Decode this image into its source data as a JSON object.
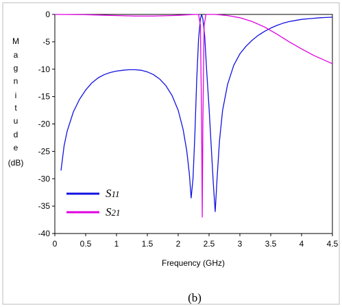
{
  "chart_data": {
    "type": "line",
    "caption": "(b)",
    "xlabel": "Frequency (GHz)",
    "ylabel_letters": [
      "M",
      "a",
      "g",
      "n",
      "i",
      "t",
      "u",
      "d",
      "e",
      "(dB)"
    ],
    "xlim": [
      0,
      4.5
    ],
    "ylim": [
      -40,
      0
    ],
    "x_ticks": [
      "0",
      "0.5",
      "1",
      "1.5",
      "2",
      "2.5",
      "3",
      "3.5",
      "4",
      "4.5"
    ],
    "y_ticks": [
      "0",
      "-5",
      "-10",
      "-15",
      "-20",
      "-25",
      "-30",
      "-35",
      "-40"
    ],
    "grid": false,
    "legend_position": "bottom-left",
    "series": [
      {
        "name": "S11",
        "name_base": "S",
        "name_sub": "11",
        "color": "#1010e0",
        "points": [
          [
            0.1,
            -28.5
          ],
          [
            0.15,
            -24
          ],
          [
            0.2,
            -21.3
          ],
          [
            0.3,
            -17.8
          ],
          [
            0.4,
            -15.5
          ],
          [
            0.5,
            -13.8
          ],
          [
            0.6,
            -12.5
          ],
          [
            0.7,
            -11.6
          ],
          [
            0.8,
            -11.0
          ],
          [
            0.9,
            -10.6
          ],
          [
            1.0,
            -10.35
          ],
          [
            1.1,
            -10.2
          ],
          [
            1.2,
            -10.1
          ],
          [
            1.3,
            -10.1
          ],
          [
            1.4,
            -10.2
          ],
          [
            1.5,
            -10.5
          ],
          [
            1.6,
            -11.0
          ],
          [
            1.7,
            -11.8
          ],
          [
            1.8,
            -13.0
          ],
          [
            1.9,
            -14.8
          ],
          [
            2.0,
            -17.5
          ],
          [
            2.08,
            -21
          ],
          [
            2.14,
            -25
          ],
          [
            2.18,
            -29
          ],
          [
            2.21,
            -33.5
          ],
          [
            2.24,
            -30
          ],
          [
            2.27,
            -22
          ],
          [
            2.3,
            -12
          ],
          [
            2.33,
            -4.5
          ],
          [
            2.36,
            -0.8
          ],
          [
            2.38,
            0
          ],
          [
            2.4,
            -0.8
          ],
          [
            2.43,
            -4
          ],
          [
            2.46,
            -10
          ],
          [
            2.5,
            -17
          ],
          [
            2.54,
            -25
          ],
          [
            2.57,
            -31
          ],
          [
            2.6,
            -36
          ],
          [
            2.63,
            -30
          ],
          [
            2.67,
            -23
          ],
          [
            2.72,
            -17.5
          ],
          [
            2.8,
            -12.8
          ],
          [
            2.9,
            -9.3
          ],
          [
            3.0,
            -7.2
          ],
          [
            3.1,
            -5.8
          ],
          [
            3.2,
            -4.7
          ],
          [
            3.3,
            -3.8
          ],
          [
            3.4,
            -3.1
          ],
          [
            3.5,
            -2.5
          ],
          [
            3.6,
            -2.0
          ],
          [
            3.7,
            -1.6
          ],
          [
            3.8,
            -1.3
          ],
          [
            3.9,
            -1.1
          ],
          [
            4.0,
            -0.9
          ],
          [
            4.1,
            -0.8
          ],
          [
            4.2,
            -0.7
          ],
          [
            4.3,
            -0.6
          ],
          [
            4.4,
            -0.55
          ],
          [
            4.5,
            -0.5
          ]
        ]
      },
      {
        "name": "S21",
        "name_base": "S",
        "name_sub": "21",
        "color": "#e000e0",
        "points": [
          [
            0.0,
            0
          ],
          [
            0.5,
            -0.05
          ],
          [
            1.0,
            -0.2
          ],
          [
            1.3,
            -0.3
          ],
          [
            1.6,
            -0.3
          ],
          [
            1.9,
            -0.2
          ],
          [
            2.1,
            -0.1
          ],
          [
            2.2,
            -0.05
          ],
          [
            2.3,
            0
          ],
          [
            2.33,
            0
          ],
          [
            2.36,
            -2
          ],
          [
            2.38,
            -20
          ],
          [
            2.39,
            -37
          ],
          [
            2.4,
            -20
          ],
          [
            2.42,
            -2
          ],
          [
            2.45,
            0
          ],
          [
            2.6,
            0
          ],
          [
            2.8,
            -0.2
          ],
          [
            3.0,
            -0.6
          ],
          [
            3.2,
            -1.3
          ],
          [
            3.4,
            -2.3
          ],
          [
            3.6,
            -3.6
          ],
          [
            3.8,
            -5.0
          ],
          [
            4.0,
            -6.3
          ],
          [
            4.2,
            -7.5
          ],
          [
            4.4,
            -8.5
          ],
          [
            4.5,
            -9.0
          ]
        ]
      }
    ]
  }
}
